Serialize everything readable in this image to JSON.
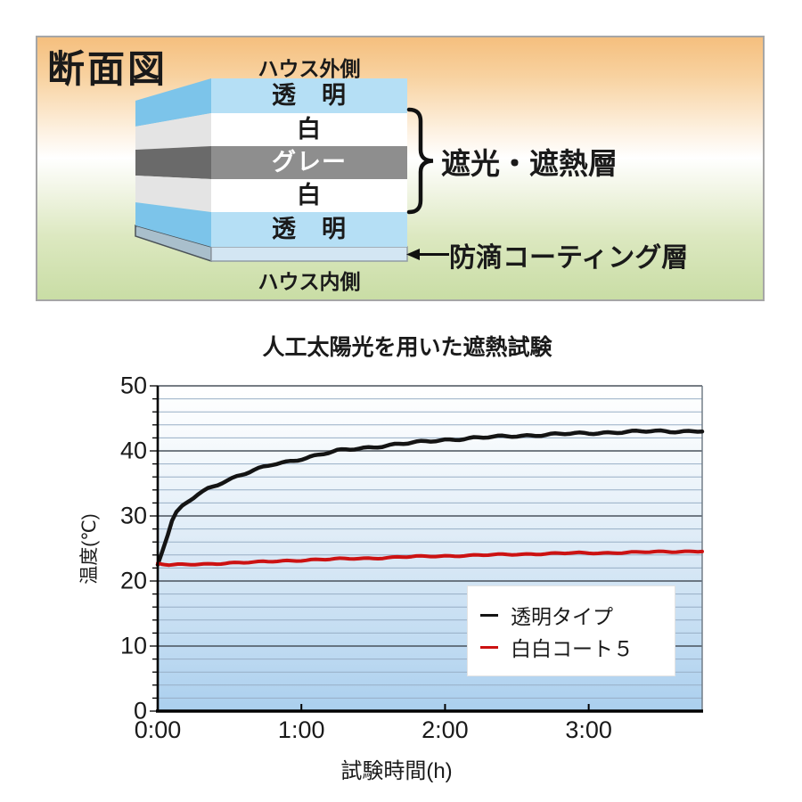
{
  "diagram": {
    "title": "断面図",
    "outside_label": "ハウス外側",
    "inside_label": "ハウス内側",
    "layers": [
      {
        "label": "透　明",
        "front_color": "#b5dff5",
        "side_color": "#7cc4ea",
        "text_color": "#1a1a1a"
      },
      {
        "label": "白",
        "front_color": "#ffffff",
        "side_color": "#e4e4e4",
        "text_color": "#1a1a1a"
      },
      {
        "label": "グレー",
        "front_color": "#8e8e8e",
        "side_color": "#6a6a6a",
        "text_color": "#ffffff"
      },
      {
        "label": "白",
        "front_color": "#ffffff",
        "side_color": "#e4e4e4",
        "text_color": "#1a1a1a"
      },
      {
        "label": "透　明",
        "front_color": "#b5dff5",
        "side_color": "#7cc4ea",
        "text_color": "#1a1a1a"
      }
    ],
    "coating_color": "#d3e6f3",
    "coating_side_color": "#a9bfcc",
    "brace_label": "遮光・遮熱層",
    "arrow_label": "防滴コーティング層"
  },
  "chart_data": {
    "type": "line",
    "title": "人工太陽光を用いた遮熱試験",
    "xlabel": "試験時間(h)",
    "ylabel": "温度(℃)",
    "ylim": [
      0,
      50
    ],
    "xlim_hours": [
      0,
      3.79
    ],
    "y_ticks": [
      0,
      10,
      20,
      30,
      40,
      50
    ],
    "x_ticks": [
      {
        "label": "0:00",
        "hour": 0
      },
      {
        "label": "1:00",
        "hour": 1
      },
      {
        "label": "2:00",
        "hour": 2
      },
      {
        "label": "3:00",
        "hour": 3
      }
    ],
    "grid": {
      "minor_step": 2,
      "major_step": 10,
      "vertical": false
    },
    "legend_position": "inside-lower-right",
    "series": [
      {
        "name": "透明タイプ",
        "color": "#141414",
        "points": [
          [
            0,
            22.5
          ],
          [
            0.03,
            24.5
          ],
          [
            0.07,
            27.2
          ],
          [
            0.1,
            29.3
          ],
          [
            0.13,
            30.5
          ],
          [
            0.17,
            31.4
          ],
          [
            0.22,
            32.3
          ],
          [
            0.28,
            33.3
          ],
          [
            0.35,
            34.2
          ],
          [
            0.45,
            35.2
          ],
          [
            0.55,
            36.1
          ],
          [
            0.67,
            37.0
          ],
          [
            0.8,
            37.9
          ],
          [
            0.92,
            38.4
          ],
          [
            1.0,
            38.8
          ],
          [
            1.12,
            39.4
          ],
          [
            1.25,
            40.0
          ],
          [
            1.37,
            40.3
          ],
          [
            1.5,
            40.6
          ],
          [
            1.65,
            41.0
          ],
          [
            1.8,
            41.3
          ],
          [
            2.0,
            41.7
          ],
          [
            2.2,
            42.0
          ],
          [
            2.4,
            42.2
          ],
          [
            2.6,
            42.4
          ],
          [
            2.8,
            42.6
          ],
          [
            3.0,
            42.7
          ],
          [
            3.2,
            42.9
          ],
          [
            3.4,
            43.0
          ],
          [
            3.6,
            43.0
          ],
          [
            3.79,
            43.1
          ]
        ]
      },
      {
        "name": "白白コート５",
        "color": "#cc1212",
        "points": [
          [
            0,
            22.7
          ],
          [
            0.08,
            22.5
          ],
          [
            0.2,
            22.5
          ],
          [
            0.35,
            22.6
          ],
          [
            0.5,
            22.8
          ],
          [
            0.7,
            22.9
          ],
          [
            0.9,
            23.1
          ],
          [
            1.1,
            23.3
          ],
          [
            1.3,
            23.4
          ],
          [
            1.5,
            23.5
          ],
          [
            1.7,
            23.7
          ],
          [
            1.9,
            23.8
          ],
          [
            2.1,
            23.9
          ],
          [
            2.3,
            24.0
          ],
          [
            2.5,
            24.1
          ],
          [
            2.7,
            24.2
          ],
          [
            2.9,
            24.3
          ],
          [
            3.1,
            24.3
          ],
          [
            3.3,
            24.4
          ],
          [
            3.55,
            24.5
          ],
          [
            3.79,
            24.6
          ]
        ]
      }
    ]
  }
}
